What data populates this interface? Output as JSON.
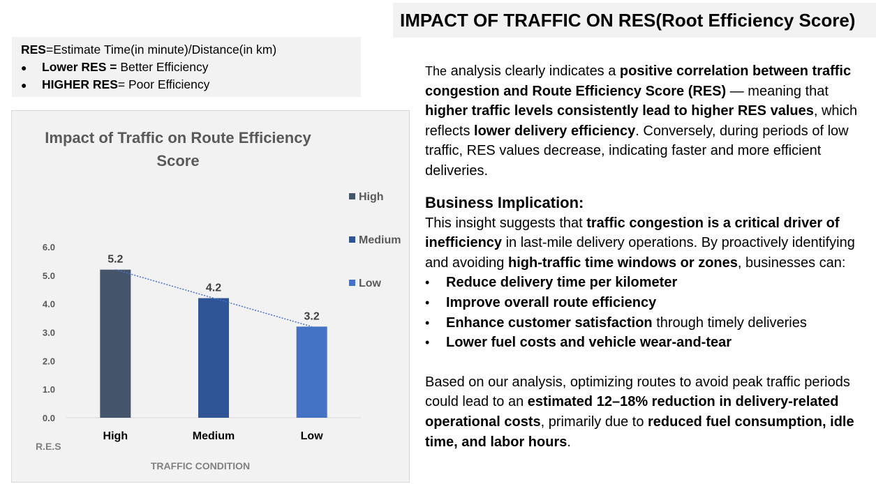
{
  "slide_title": "IMPACT OF TRAFFIC ON RES(Root Efficiency Score)",
  "definition": {
    "line1_bold": "RES",
    "line1_rest": "=Estimate Time(in minute)/Distance(in km)",
    "bullets": [
      {
        "bold": "Lower  RES =",
        "rest": " Better Efficiency"
      },
      {
        "bold": "HIGHER RES",
        "rest": "=  Poor Efficiency"
      }
    ]
  },
  "chart_data": {
    "type": "bar",
    "title": "Impact of Traffic on Route Efficiency Score",
    "title_lines": [
      "Impact of Traffic on Route Efficiency",
      "Score"
    ],
    "categories": [
      "High",
      "Medium",
      "Low"
    ],
    "values": [
      5.2,
      4.2,
      3.2
    ],
    "data_labels": [
      "5.2",
      "4.2",
      "3.2"
    ],
    "colors": [
      "#44546a",
      "#2f5597",
      "#4472c4"
    ],
    "xlabel": "TRAFFIC CONDITION",
    "ylabel": "R.E.S",
    "ylim": [
      0,
      6
    ],
    "yticks": [
      "0.0",
      "1.0",
      "2.0",
      "3.0",
      "4.0",
      "5.0",
      "6.0"
    ],
    "legend": {
      "placement": "right",
      "entries": [
        {
          "label": "High",
          "color": "#44546a"
        },
        {
          "label": "Medium",
          "color": "#2f5597"
        },
        {
          "label": "Low",
          "color": "#4472c4"
        }
      ]
    },
    "trendline": {
      "type": "linear",
      "style": "dotted",
      "color": "#4472c4"
    },
    "grid": false
  },
  "analysis": {
    "p1": [
      {
        "t": "The",
        "small": true
      },
      {
        "t": " analysis clearly indicates a "
      },
      {
        "t": "positive correlation between traffic congestion and Route Efficiency Score (RES)",
        "b": true
      },
      {
        "t": " — meaning that "
      },
      {
        "t": "higher traffic levels consistently lead to higher RES values",
        "b": true
      },
      {
        "t": ", which reflects "
      },
      {
        "t": "lower delivery efficiency",
        "b": true
      },
      {
        "t": ". Conversely, during periods of low traffic, RES values decrease, indicating faster and more efficient deliveries."
      }
    ],
    "heading": "Business Implication:",
    "p2": [
      {
        "t": "This insight suggests that "
      },
      {
        "t": "traffic congestion is a critical driver of inefficiency",
        "b": true
      },
      {
        "t": " in last-mile delivery operations. By proactively identifying and avoiding "
      },
      {
        "t": "high-traffic time windows or zones",
        "b": true
      },
      {
        "t": ", businesses can:"
      }
    ],
    "bullets": [
      [
        {
          "t": "Reduce delivery time per kilometer",
          "b": true
        }
      ],
      [
        {
          "t": "Improve overall route efficiency",
          "b": true
        }
      ],
      [
        {
          "t": "Enhance customer satisfaction",
          "b": true
        },
        {
          "t": " through timely deliveries"
        }
      ],
      [
        {
          "t": "Lower fuel costs and vehicle wear-and-tear",
          "b": true
        }
      ]
    ],
    "p3": [
      {
        "t": "Based on our analysis, optimizing routes to avoid peak traffic periods could lead to an "
      },
      {
        "t": "estimated 12–18% reduction in delivery-related operational costs",
        "b": true
      },
      {
        "t": ", primarily due to "
      },
      {
        "t": "reduced fuel consumption, idle time, and labor hours",
        "b": true
      },
      {
        "t": "."
      }
    ]
  }
}
